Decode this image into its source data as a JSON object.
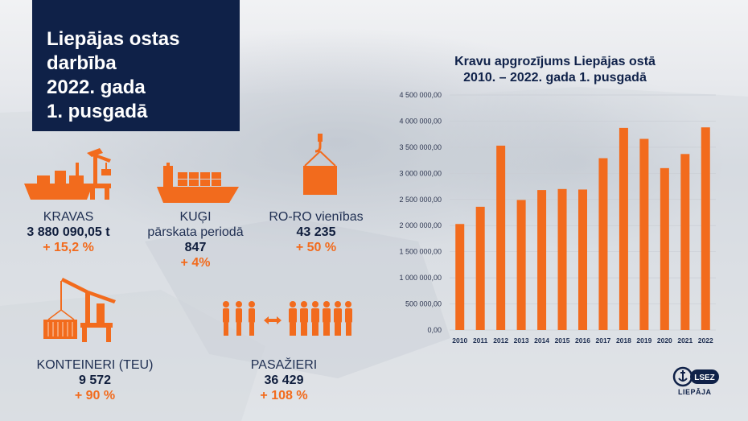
{
  "title_lines": [
    "Liepājas ostas",
    "darbība",
    "2022. gada",
    "1. pusgadā"
  ],
  "stats": {
    "kravas": {
      "label": "KRAVAS",
      "value": "3 880 090,05 t",
      "change": "+ 15,2 %"
    },
    "kugi": {
      "label1": "KUĢI",
      "label2": "pārskata periodā",
      "value": "847",
      "change": "+ 4%"
    },
    "roro": {
      "label": "RO-RO vienības",
      "value": "43 235",
      "change": "+ 50 %"
    },
    "konteineri": {
      "label": "KONTEINERI (TEU)",
      "value": "9 572",
      "change": "+ 90 %"
    },
    "pasazieri": {
      "label": "PASAŽIERI",
      "value": "36 429",
      "change": "+ 108 %"
    }
  },
  "colors": {
    "orange": "#f26b1d",
    "navy": "#0f2148"
  },
  "icons": [
    "ship-crane-icon",
    "cargo-ship-icon",
    "crane-hook-container-icon",
    "container-crane-icon",
    "passengers-icon"
  ],
  "logo": {
    "badge": "LSEZ",
    "name": "LIEPĀJA"
  },
  "chart_data": {
    "type": "bar",
    "title_lines": [
      "Kravu apgrozījums Liepājas ostā",
      "2010. – 2022. gada 1. pusgadā"
    ],
    "categories": [
      "2010",
      "2011",
      "2012",
      "2013",
      "2014",
      "2015",
      "2016",
      "2017",
      "2018",
      "2019",
      "2020",
      "2021",
      "2022"
    ],
    "values": [
      2030000,
      2360000,
      3530000,
      2490000,
      2680000,
      2700000,
      2690000,
      3290000,
      3870000,
      3660000,
      3100000,
      3370000,
      3880090.05
    ],
    "ylim": [
      0,
      4500000
    ],
    "yticks": [
      "0,00",
      "500 000,00",
      "1 000 000,00",
      "1 500 000,00",
      "2 000 000,00",
      "2 500 000,00",
      "3 000 000,00",
      "3 500 000,00",
      "4 000 000,00",
      "4 500 000,00"
    ],
    "grid": true,
    "color": "#f26b1d"
  }
}
